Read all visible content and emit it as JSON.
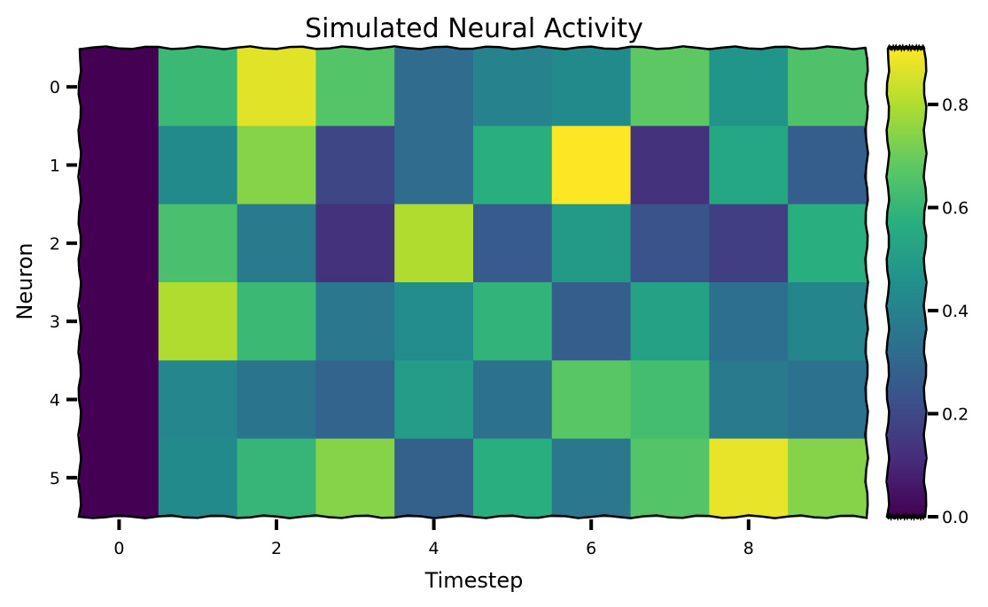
{
  "chart_data": {
    "type": "heatmap",
    "title": "Simulated Neural Activity",
    "xlabel": "Timestep",
    "ylabel": "Neuron",
    "x_ticks": [
      0,
      2,
      4,
      6,
      8
    ],
    "y_ticks": [
      0,
      1,
      2,
      3,
      4,
      5
    ],
    "rows": [
      "0",
      "1",
      "2",
      "3",
      "4",
      "5"
    ],
    "columns": [
      "0",
      "1",
      "2",
      "3",
      "4",
      "5",
      "6",
      "7",
      "8",
      "9"
    ],
    "values": [
      [
        0.0,
        0.61,
        0.87,
        0.66,
        0.32,
        0.4,
        0.43,
        0.68,
        0.47,
        0.65
      ],
      [
        0.0,
        0.43,
        0.74,
        0.19,
        0.32,
        0.57,
        0.91,
        0.13,
        0.54,
        0.27
      ],
      [
        0.0,
        0.64,
        0.37,
        0.13,
        0.8,
        0.26,
        0.49,
        0.23,
        0.17,
        0.57
      ],
      [
        0.0,
        0.8,
        0.61,
        0.36,
        0.44,
        0.59,
        0.27,
        0.52,
        0.33,
        0.41
      ],
      [
        0.0,
        0.42,
        0.35,
        0.29,
        0.5,
        0.34,
        0.67,
        0.63,
        0.37,
        0.34
      ],
      [
        0.0,
        0.43,
        0.6,
        0.74,
        0.28,
        0.57,
        0.36,
        0.66,
        0.88,
        0.74
      ]
    ],
    "colormap": "viridis",
    "colorbar": {
      "range": [
        0.0,
        0.91
      ],
      "ticks": [
        0.0,
        0.2,
        0.4,
        0.6,
        0.8
      ],
      "tick_labels": [
        "0.0",
        "0.2",
        "0.4",
        "0.6",
        "0.8"
      ]
    },
    "grid": false,
    "style": "hand-drawn"
  }
}
